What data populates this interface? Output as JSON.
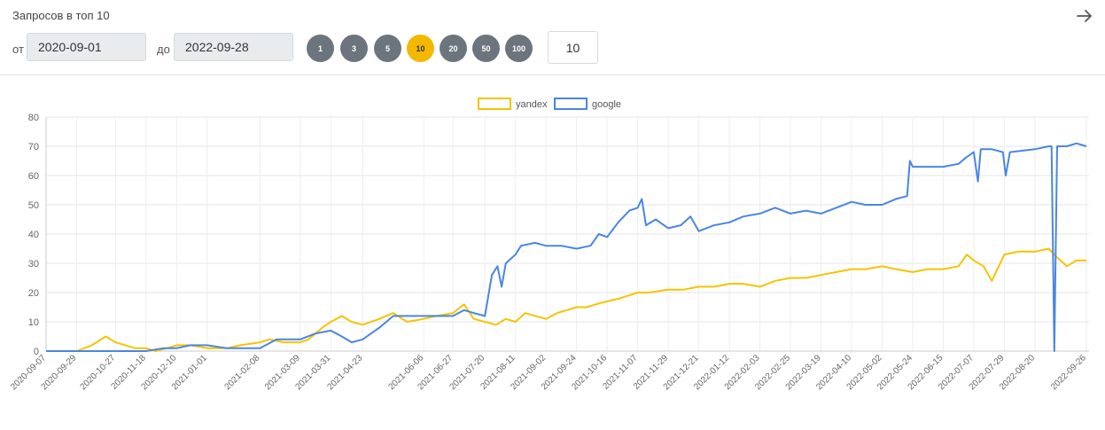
{
  "header": {
    "title": "Запросов в топ 10",
    "from_label": "от",
    "to_label": "до",
    "date_from": "2020-09-01",
    "date_to": "2022-09-28",
    "top_options": [
      "1",
      "3",
      "5",
      "10",
      "20",
      "50",
      "100"
    ],
    "top_selected": "10",
    "count_value": "10",
    "arrow_icon": "arrow-right-icon"
  },
  "colors": {
    "yandex": "#f5c400",
    "google": "#4a86e0",
    "pill": "#6c757d",
    "pill_active": "#f5b800"
  },
  "chart_data": {
    "type": "line",
    "legend_position": "top-center",
    "grid": true,
    "ylim": [
      0,
      80
    ],
    "yticks": [
      0,
      10,
      20,
      30,
      40,
      50,
      60,
      70,
      80
    ],
    "xlim": [
      "2020-09-07",
      "2022-09-28"
    ],
    "xticks": [
      "2020-09-07",
      "2020-09-29",
      "2020-10-27",
      "2020-11-18",
      "2020-12-10",
      "2021-01-01",
      "2021-02-08",
      "2021-03-09",
      "2021-03-31",
      "2021-04-23",
      "2021-06-06",
      "2021-06-27",
      "2021-07-20",
      "2021-08-11",
      "2021-09-02",
      "2021-09-24",
      "2021-10-16",
      "2021-11-07",
      "2021-11-29",
      "2021-12-21",
      "2022-01-12",
      "2022-02-03",
      "2022-02-25",
      "2022-03-19",
      "2022-04-10",
      "2022-05-02",
      "2022-05-24",
      "2022-06-15",
      "2022-07-07",
      "2022-07-29",
      "2022-08-20",
      "2022-09-26"
    ],
    "series": [
      {
        "name": "yandex",
        "points": [
          [
            "2020-09-07",
            0
          ],
          [
            "2020-09-29",
            0
          ],
          [
            "2020-10-10",
            2
          ],
          [
            "2020-10-20",
            5
          ],
          [
            "2020-10-27",
            3
          ],
          [
            "2020-11-03",
            2
          ],
          [
            "2020-11-10",
            1
          ],
          [
            "2020-11-18",
            1
          ],
          [
            "2020-11-25",
            0
          ],
          [
            "2020-12-03",
            1
          ],
          [
            "2020-12-10",
            2
          ],
          [
            "2020-12-20",
            2
          ],
          [
            "2021-01-01",
            1
          ],
          [
            "2021-01-15",
            1
          ],
          [
            "2021-01-25",
            2
          ],
          [
            "2021-02-08",
            3
          ],
          [
            "2021-02-15",
            4
          ],
          [
            "2021-02-25",
            3
          ],
          [
            "2021-03-09",
            3
          ],
          [
            "2021-03-15",
            4
          ],
          [
            "2021-03-20",
            6
          ],
          [
            "2021-03-25",
            8
          ],
          [
            "2021-03-31",
            10
          ],
          [
            "2021-04-08",
            12
          ],
          [
            "2021-04-15",
            10
          ],
          [
            "2021-04-23",
            9
          ],
          [
            "2021-05-05",
            11
          ],
          [
            "2021-05-15",
            13
          ],
          [
            "2021-05-25",
            10
          ],
          [
            "2021-06-06",
            11
          ],
          [
            "2021-06-15",
            12
          ],
          [
            "2021-06-27",
            13
          ],
          [
            "2021-07-05",
            16
          ],
          [
            "2021-07-12",
            11
          ],
          [
            "2021-07-20",
            10
          ],
          [
            "2021-07-28",
            9
          ],
          [
            "2021-08-04",
            11
          ],
          [
            "2021-08-11",
            10
          ],
          [
            "2021-08-18",
            13
          ],
          [
            "2021-08-25",
            12
          ],
          [
            "2021-09-02",
            11
          ],
          [
            "2021-09-10",
            13
          ],
          [
            "2021-09-17",
            14
          ],
          [
            "2021-09-24",
            15
          ],
          [
            "2021-10-01",
            15
          ],
          [
            "2021-10-08",
            16
          ],
          [
            "2021-10-16",
            17
          ],
          [
            "2021-10-25",
            18
          ],
          [
            "2021-11-07",
            20
          ],
          [
            "2021-11-15",
            20
          ],
          [
            "2021-11-29",
            21
          ],
          [
            "2021-12-10",
            21
          ],
          [
            "2021-12-21",
            22
          ],
          [
            "2022-01-01",
            22
          ],
          [
            "2022-01-12",
            23
          ],
          [
            "2022-01-22",
            23
          ],
          [
            "2022-02-03",
            22
          ],
          [
            "2022-02-14",
            24
          ],
          [
            "2022-02-25",
            25
          ],
          [
            "2022-03-08",
            25
          ],
          [
            "2022-03-19",
            26
          ],
          [
            "2022-03-30",
            27
          ],
          [
            "2022-04-10",
            28
          ],
          [
            "2022-04-20",
            28
          ],
          [
            "2022-05-02",
            29
          ],
          [
            "2022-05-12",
            28
          ],
          [
            "2022-05-24",
            27
          ],
          [
            "2022-06-04",
            28
          ],
          [
            "2022-06-15",
            28
          ],
          [
            "2022-06-26",
            29
          ],
          [
            "2022-07-02",
            33
          ],
          [
            "2022-07-07",
            31
          ],
          [
            "2022-07-14",
            29
          ],
          [
            "2022-07-20",
            24
          ],
          [
            "2022-07-29",
            33
          ],
          [
            "2022-08-08",
            34
          ],
          [
            "2022-08-20",
            34
          ],
          [
            "2022-08-30",
            35
          ],
          [
            "2022-09-05",
            32
          ],
          [
            "2022-09-12",
            29
          ],
          [
            "2022-09-19",
            31
          ],
          [
            "2022-09-26",
            31
          ]
        ]
      },
      {
        "name": "google",
        "points": [
          [
            "2020-09-07",
            0
          ],
          [
            "2020-09-29",
            0
          ],
          [
            "2020-10-27",
            0
          ],
          [
            "2020-11-18",
            0
          ],
          [
            "2020-12-01",
            1
          ],
          [
            "2020-12-10",
            1
          ],
          [
            "2020-12-20",
            2
          ],
          [
            "2021-01-01",
            2
          ],
          [
            "2021-01-15",
            1
          ],
          [
            "2021-02-08",
            1
          ],
          [
            "2021-02-20",
            4
          ],
          [
            "2021-03-09",
            4
          ],
          [
            "2021-03-20",
            6
          ],
          [
            "2021-03-31",
            7
          ],
          [
            "2021-04-08",
            5
          ],
          [
            "2021-04-15",
            3
          ],
          [
            "2021-04-23",
            4
          ],
          [
            "2021-05-05",
            8
          ],
          [
            "2021-05-15",
            12
          ],
          [
            "2021-05-25",
            12
          ],
          [
            "2021-06-06",
            12
          ],
          [
            "2021-06-15",
            12
          ],
          [
            "2021-06-27",
            12
          ],
          [
            "2021-07-05",
            14
          ],
          [
            "2021-07-12",
            13
          ],
          [
            "2021-07-20",
            12
          ],
          [
            "2021-07-25",
            26
          ],
          [
            "2021-07-29",
            29
          ],
          [
            "2021-08-01",
            22
          ],
          [
            "2021-08-04",
            30
          ],
          [
            "2021-08-11",
            33
          ],
          [
            "2021-08-15",
            36
          ],
          [
            "2021-08-25",
            37
          ],
          [
            "2021-09-02",
            36
          ],
          [
            "2021-09-13",
            36
          ],
          [
            "2021-09-24",
            35
          ],
          [
            "2021-10-04",
            36
          ],
          [
            "2021-10-10",
            40
          ],
          [
            "2021-10-16",
            39
          ],
          [
            "2021-10-24",
            44
          ],
          [
            "2021-11-01",
            48
          ],
          [
            "2021-11-07",
            49
          ],
          [
            "2021-11-10",
            52
          ],
          [
            "2021-11-13",
            43
          ],
          [
            "2021-11-20",
            45
          ],
          [
            "2021-11-29",
            42
          ],
          [
            "2021-12-08",
            43
          ],
          [
            "2021-12-15",
            46
          ],
          [
            "2021-12-21",
            41
          ],
          [
            "2022-01-01",
            43
          ],
          [
            "2022-01-12",
            44
          ],
          [
            "2022-01-22",
            46
          ],
          [
            "2022-02-03",
            47
          ],
          [
            "2022-02-14",
            49
          ],
          [
            "2022-02-25",
            47
          ],
          [
            "2022-03-08",
            48
          ],
          [
            "2022-03-19",
            47
          ],
          [
            "2022-03-30",
            49
          ],
          [
            "2022-04-10",
            51
          ],
          [
            "2022-04-20",
            50
          ],
          [
            "2022-05-02",
            50
          ],
          [
            "2022-05-12",
            52
          ],
          [
            "2022-05-20",
            53
          ],
          [
            "2022-05-22",
            65
          ],
          [
            "2022-05-24",
            63
          ],
          [
            "2022-06-04",
            63
          ],
          [
            "2022-06-15",
            63
          ],
          [
            "2022-06-26",
            64
          ],
          [
            "2022-07-01",
            66
          ],
          [
            "2022-07-07",
            68
          ],
          [
            "2022-07-10",
            58
          ],
          [
            "2022-07-12",
            69
          ],
          [
            "2022-07-20",
            69
          ],
          [
            "2022-07-28",
            68
          ],
          [
            "2022-07-30",
            60
          ],
          [
            "2022-08-02",
            68
          ],
          [
            "2022-08-20",
            69
          ],
          [
            "2022-08-30",
            70
          ],
          [
            "2022-09-01",
            70
          ],
          [
            "2022-09-03",
            0
          ],
          [
            "2022-09-05",
            70
          ],
          [
            "2022-09-12",
            70
          ],
          [
            "2022-09-19",
            71
          ],
          [
            "2022-09-26",
            70
          ]
        ]
      }
    ]
  }
}
